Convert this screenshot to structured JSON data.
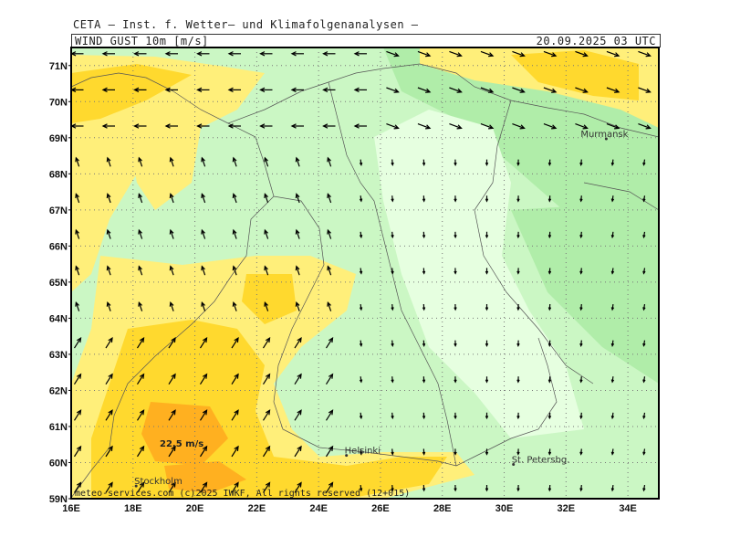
{
  "header": {
    "agency": "CETA — Inst. f. Wetter— und Klimafolgenanalysen —",
    "variable": "WIND_GUST_10m_[m/s]",
    "valid_time": "20.09.2025 03 UTC"
  },
  "map": {
    "lon_range": [
      16,
      35
    ],
    "lat_range": [
      59,
      71.5
    ],
    "lon_ticks": [
      "16E",
      "18E",
      "20E",
      "22E",
      "24E",
      "26E",
      "28E",
      "30E",
      "32E",
      "34E"
    ],
    "lat_ticks": [
      "59N",
      "60N",
      "61N",
      "62N",
      "63N",
      "64N",
      "65N",
      "66N",
      "67N",
      "68N",
      "69N",
      "70N",
      "71N"
    ],
    "grid": "dotted",
    "colors": {
      "very_light": "#e6ffe0",
      "light_green": "#cbf7c4",
      "mid_green": "#b0eda9",
      "pale_yellow": "#ffef7a",
      "yellow": "#ffd92e",
      "orange": "#ffb020",
      "coast": "#555555",
      "arrow": "#000000"
    },
    "cities": [
      {
        "name": "Murmansk",
        "lon": 33.3,
        "lat": 68.97
      },
      {
        "name": "Helsinki",
        "lon": 24.9,
        "lat": 60.2
      },
      {
        "name": "St. Petersbg.",
        "lon": 30.3,
        "lat": 59.95
      },
      {
        "name": "Stockholm",
        "lon": 18.1,
        "lat": 59.35
      }
    ],
    "max_label": "22.5 m/s",
    "copyright": "meteo-services.com (c)2025 IWKF, All rights reserved (12+015)"
  }
}
